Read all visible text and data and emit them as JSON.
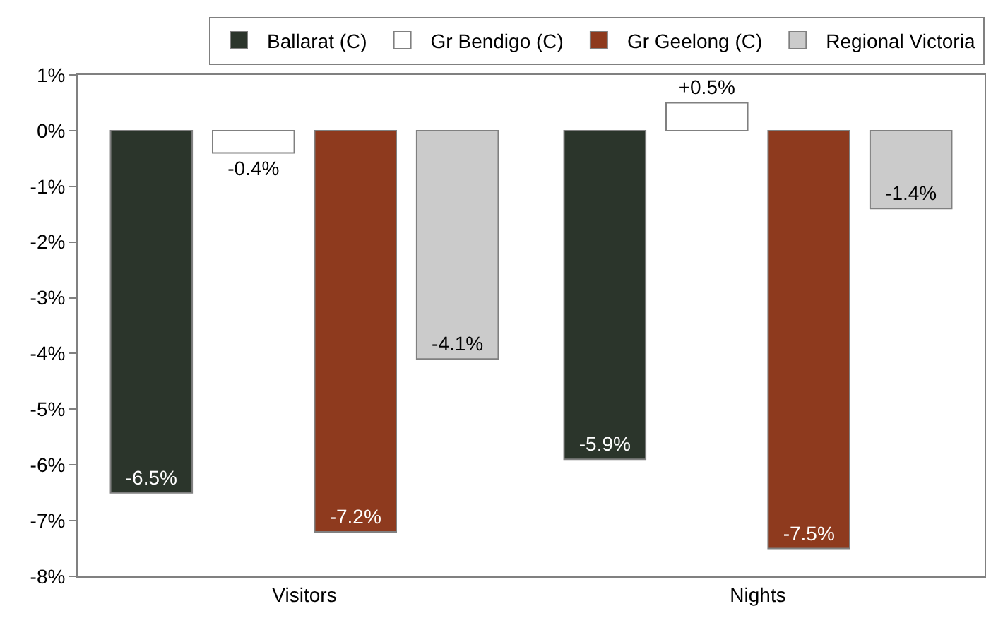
{
  "chart_data": {
    "type": "bar",
    "categories": [
      "Visitors",
      "Nights"
    ],
    "series": [
      {
        "name": "Ballarat (C)",
        "color": "#2b352b",
        "values": [
          -6.5,
          -5.9
        ],
        "value_labels": [
          "-6.5%",
          "-5.9%"
        ]
      },
      {
        "name": "Gr Bendigo (C)",
        "color": "#ffffff",
        "values": [
          -0.4,
          0.5
        ],
        "value_labels": [
          "-0.4%",
          "+0.5%"
        ]
      },
      {
        "name": "Gr Geelong (C)",
        "color": "#8e3a1e",
        "values": [
          -7.2,
          -7.5
        ],
        "value_labels": [
          "-7.2%",
          "-7.5%"
        ]
      },
      {
        "name": "Regional Victoria",
        "color": "#cbcbcb",
        "values": [
          -4.1,
          -1.4
        ],
        "value_labels": [
          "-4.1%",
          "-1.4%"
        ]
      }
    ],
    "ylim": [
      -8,
      1
    ],
    "yticks": [
      {
        "value": 1,
        "label": "1%"
      },
      {
        "value": 0,
        "label": "0%"
      },
      {
        "value": -1,
        "label": "-1%"
      },
      {
        "value": -2,
        "label": "-2%"
      },
      {
        "value": -3,
        "label": "-3%"
      },
      {
        "value": -4,
        "label": "-4%"
      },
      {
        "value": -5,
        "label": "-5%"
      },
      {
        "value": -6,
        "label": "-6%"
      },
      {
        "value": -7,
        "label": "-7%"
      },
      {
        "value": -8,
        "label": "-8%"
      }
    ],
    "legend": "top right"
  }
}
